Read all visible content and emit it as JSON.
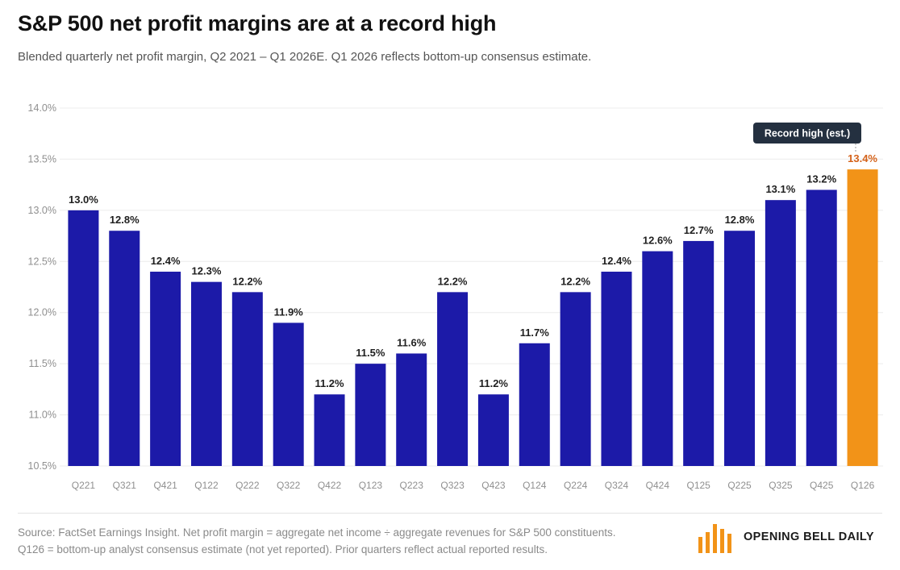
{
  "header": {
    "title": "S&P 500 net profit margins are at a record high",
    "subtitle": "Blended quarterly net profit margin, Q2 2021 – Q1 2026E. Q1 2026 reflects bottom-up consensus estimate."
  },
  "chart_data": {
    "type": "bar",
    "title": "S&P 500 net profit margins are at a record high",
    "subtitle": "Blended quarterly net profit margin, Q2 2021 – Q1 2026E. Q1 2026 reflects bottom-up consensus estimate.",
    "xlabel": "",
    "ylabel": "",
    "categories": [
      "Q221",
      "Q321",
      "Q421",
      "Q122",
      "Q222",
      "Q322",
      "Q422",
      "Q123",
      "Q223",
      "Q323",
      "Q423",
      "Q124",
      "Q224",
      "Q324",
      "Q424",
      "Q125",
      "Q225",
      "Q325",
      "Q425",
      "Q126"
    ],
    "values": [
      13.0,
      12.8,
      12.4,
      12.3,
      12.2,
      11.9,
      11.2,
      11.5,
      11.6,
      12.2,
      11.2,
      11.7,
      12.2,
      12.4,
      12.6,
      12.7,
      12.8,
      13.1,
      13.2,
      13.4
    ],
    "value_labels": [
      "13.0%",
      "12.8%",
      "12.4%",
      "12.3%",
      "12.2%",
      "11.9%",
      "11.2%",
      "11.5%",
      "11.6%",
      "12.2%",
      "11.2%",
      "11.7%",
      "12.2%",
      "12.4%",
      "12.6%",
      "12.7%",
      "12.8%",
      "13.1%",
      "13.2%",
      "13.4%"
    ],
    "ylim": [
      10.5,
      14.0
    ],
    "yticks": [
      10.5,
      11.0,
      11.5,
      12.0,
      12.5,
      13.0,
      13.5,
      14.0
    ],
    "ytick_labels": [
      "10.5%",
      "11.0%",
      "11.5%",
      "12.0%",
      "12.5%",
      "13.0%",
      "13.5%",
      "14.0%"
    ],
    "grid": true,
    "highlight_index": 19,
    "annotation": {
      "text": "Record high (est.)",
      "index": 19
    },
    "colors": {
      "bar": "#1c1aa8",
      "highlight": "#f29318",
      "highlight_label": "#d4621a",
      "label": "#1f1f1f",
      "tick": "#8f8f8f",
      "grid": "#ececec",
      "annotation_bg": "#243040",
      "annotation_text": "#ffffff"
    }
  },
  "footer": {
    "source_line1": "Source: FactSet Earnings Insight. Net profit margin = aggregate net income ÷ aggregate revenues for S&P 500 constituents.",
    "source_line2": "Q126 = bottom-up analyst consensus estimate (not yet reported). Prior quarters reflect actual reported results.",
    "brand": "OPENING BELL DAILY",
    "brand_color": "#f29318"
  }
}
